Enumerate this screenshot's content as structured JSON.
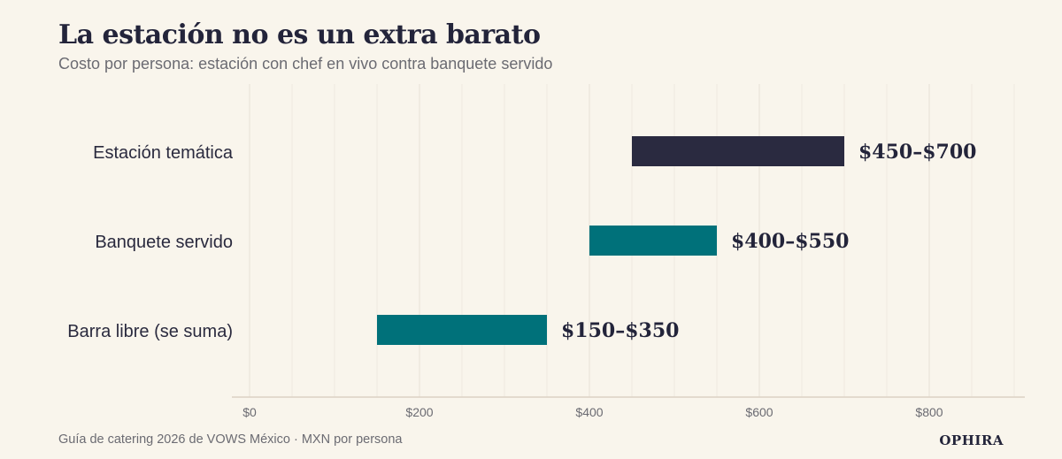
{
  "header": {
    "title": "La estación no es un extra barato",
    "subtitle": "Costo por persona: estación con chef en vivo contra banquete servido"
  },
  "footer": {
    "source": "Guía de catering 2026 de VOWS México · MXN por persona",
    "brand": "OPHIRA"
  },
  "colors": {
    "background": "#f9f5ec",
    "dark_bar": "#2a2a40",
    "teal_bar": "#00717a",
    "grid": "#e6e1d6",
    "axis": "#dcd2c4",
    "text": "#2a2a3e",
    "muted": "#6b6b72"
  },
  "chart_data": {
    "type": "bar",
    "orientation": "horizontal-range",
    "categories": [
      "Estación temática",
      "Banquete servido",
      "Barra libre (se suma)"
    ],
    "ranges": [
      [
        450,
        700
      ],
      [
        400,
        550
      ],
      [
        150,
        350
      ]
    ],
    "value_labels": [
      "$450–$700",
      "$400–$550",
      "$150–$350"
    ],
    "bar_colors": [
      "#2a2a40",
      "#00717a",
      "#00717a"
    ],
    "xlim": [
      0,
      910
    ],
    "xticks": [
      0,
      200,
      400,
      600,
      800
    ],
    "xtick_labels": [
      "$0",
      "$200",
      "$400",
      "$600",
      "$800"
    ],
    "grid": true,
    "xlabel": "",
    "ylabel": ""
  }
}
